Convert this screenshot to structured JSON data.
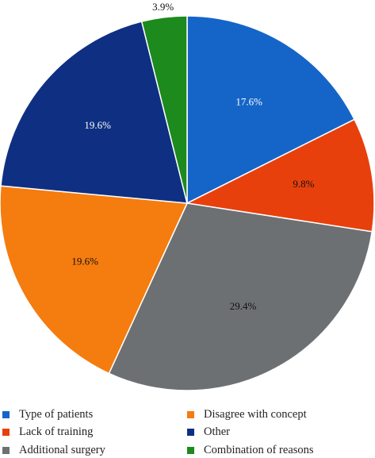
{
  "chart_data": {
    "type": "pie",
    "title": "",
    "start_angle_deg": 0,
    "direction": "clockwise",
    "legend_position": "bottom",
    "slices": [
      {
        "name": "Type of patients",
        "value": 17.6,
        "label": "17.6%",
        "color": "#1565c8",
        "label_color": "#ffffff"
      },
      {
        "name": "Lack of training",
        "value": 9.8,
        "label": "9.8%",
        "color": "#e8400c",
        "label_color": "#111111"
      },
      {
        "name": "Additional surgery",
        "value": 29.4,
        "label": "29.4%",
        "color": "#6d7072",
        "label_color": "#111111"
      },
      {
        "name": "Disagree with concept",
        "value": 19.6,
        "label": "19.6%",
        "color": "#f57c0e",
        "label_color": "#111111"
      },
      {
        "name": "Other",
        "value": 19.6,
        "label": "19.6%",
        "color": "#0f2f82",
        "label_color": "#ffffff"
      },
      {
        "name": "Combination of reasons",
        "value": 3.9,
        "label": "3.9%",
        "color": "#1c8a1c",
        "label_color": "#111111"
      }
    ]
  }
}
